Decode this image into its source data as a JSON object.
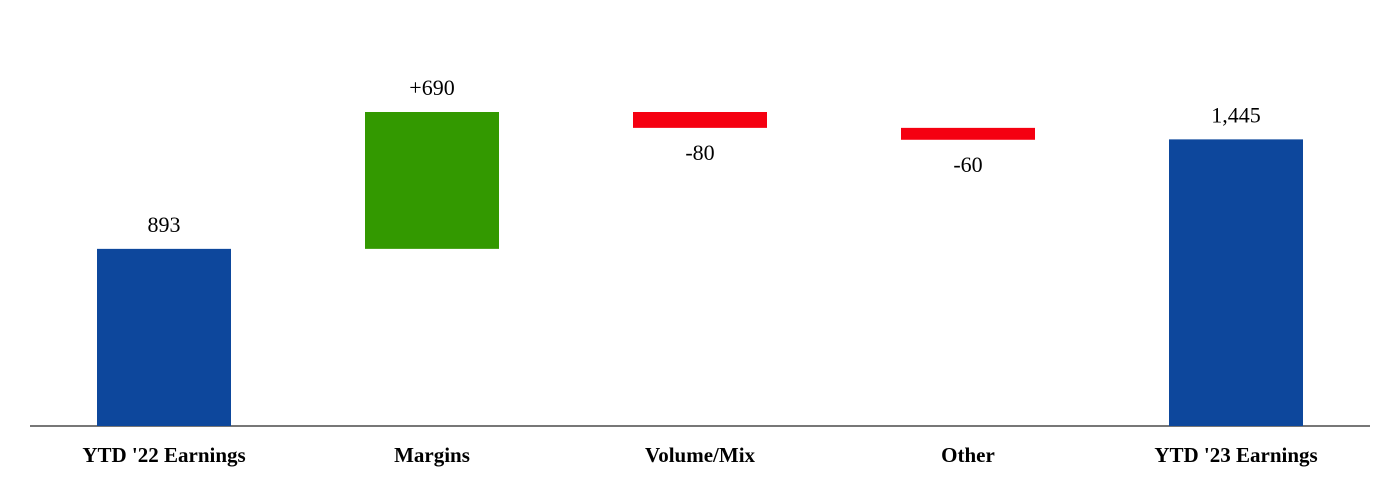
{
  "chart_data": {
    "type": "waterfall",
    "categories": [
      "YTD '22 Earnings",
      "Margins",
      "Volume/Mix",
      "Other",
      "YTD '23 Earnings"
    ],
    "values": [
      893,
      690,
      -80,
      -60,
      1445
    ],
    "value_labels": [
      "893",
      "+690",
      "-80",
      "-60",
      "1,445"
    ],
    "colors": [
      "#0d479c",
      "#339900",
      "#f50011",
      "#f50011",
      "#0d479c"
    ]
  }
}
